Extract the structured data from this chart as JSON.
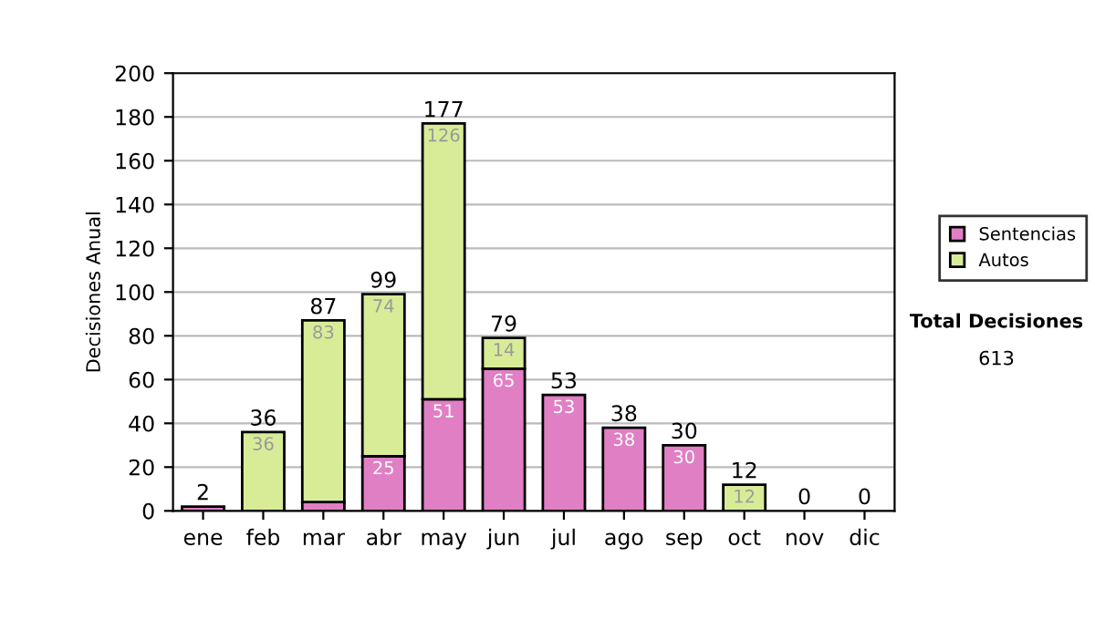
{
  "chart_data": {
    "type": "bar",
    "stacked": true,
    "ylabel": "Decisiones Anual",
    "categories": [
      "ene",
      "feb",
      "mar",
      "abr",
      "may",
      "jun",
      "jul",
      "ago",
      "sep",
      "oct",
      "nov",
      "dic"
    ],
    "series": [
      {
        "name": "Sentencias",
        "color": "#e07fc4",
        "values": [
          2,
          0,
          4,
          25,
          51,
          65,
          53,
          38,
          30,
          0,
          0,
          0
        ],
        "value_labels": [
          null,
          null,
          null,
          "25",
          "51",
          "65",
          "53",
          "38",
          "30",
          null,
          null,
          null
        ]
      },
      {
        "name": "Autos",
        "color": "#d8ec98",
        "values": [
          0,
          36,
          83,
          74,
          126,
          14,
          0,
          0,
          0,
          12,
          0,
          0
        ],
        "value_labels": [
          null,
          "36",
          "83",
          "74",
          "126",
          "14",
          null,
          null,
          null,
          "12",
          null,
          null
        ]
      }
    ],
    "totals": [
      "2",
      "36",
      "87",
      "99",
      "177",
      "79",
      "53",
      "38",
      "30",
      "12",
      "0",
      "0"
    ],
    "ylim": [
      0,
      200
    ],
    "yticks": [
      0,
      20,
      40,
      60,
      80,
      100,
      120,
      140,
      160,
      180,
      200
    ],
    "grid": "y",
    "legend": "right",
    "annotations": [
      "Total Decisiones",
      "613"
    ]
  }
}
